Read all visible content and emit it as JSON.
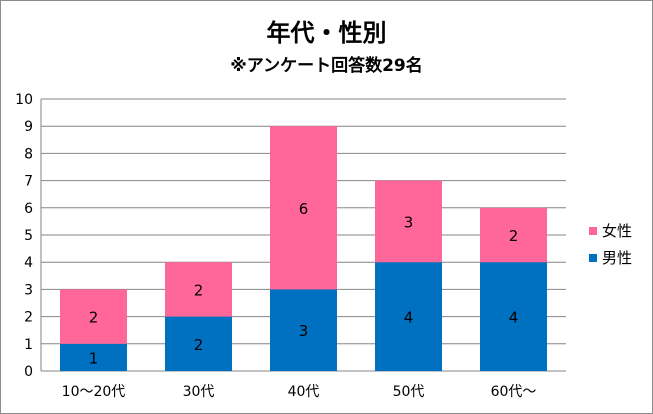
{
  "chart_data": {
    "type": "bar",
    "stacked": true,
    "title": "年代・性別",
    "subtitle": "※アンケート回答数29名",
    "categories": [
      "10～20代",
      "30代",
      "40代",
      "50代",
      "60代～"
    ],
    "series": [
      {
        "name": "男性",
        "color": "#0070C0",
        "values": [
          1,
          2,
          3,
          4,
          4
        ]
      },
      {
        "name": "女性",
        "color": "#FF6699",
        "values": [
          2,
          2,
          6,
          3,
          2
        ]
      }
    ],
    "ylim": [
      0,
      10
    ],
    "yticks": [
      "0",
      "1",
      "2",
      "3",
      "4",
      "5",
      "6",
      "7",
      "8",
      "9",
      "10"
    ],
    "grid": true,
    "legend_position": "right",
    "data_labels": true
  }
}
